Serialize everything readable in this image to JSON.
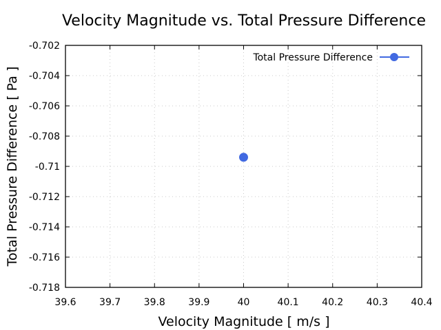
{
  "chart_data": {
    "type": "scatter",
    "title": "Velocity Magnitude vs. Total Pressure Difference",
    "xlabel": "Velocity Magnitude [ m/s ]",
    "ylabel": "Total Pressure Difference [ Pa ]",
    "xlim": [
      39.6,
      40.4
    ],
    "ylim": [
      -0.718,
      -0.702
    ],
    "xticks": [
      39.6,
      39.7,
      39.8,
      39.9,
      40,
      40.1,
      40.2,
      40.3,
      40.4
    ],
    "xtick_labels": [
      "39.6",
      "39.7",
      "39.8",
      "39.9",
      "40",
      "40.1",
      "40.2",
      "40.3",
      "40.4"
    ],
    "yticks": [
      -0.718,
      -0.716,
      -0.714,
      -0.712,
      -0.71,
      -0.708,
      -0.706,
      -0.704,
      -0.702
    ],
    "ytick_labels": [
      "-0.718",
      "-0.716",
      "-0.714",
      "-0.712",
      "-0.71",
      "-0.708",
      "-0.706",
      "-0.704",
      "-0.702"
    ],
    "grid": true,
    "legend_position": "top-right",
    "series": [
      {
        "name": "Total Pressure Difference",
        "color": "#4169e1",
        "marker": "circle",
        "points": [
          {
            "x": 40,
            "y": -0.7094
          }
        ]
      }
    ]
  }
}
